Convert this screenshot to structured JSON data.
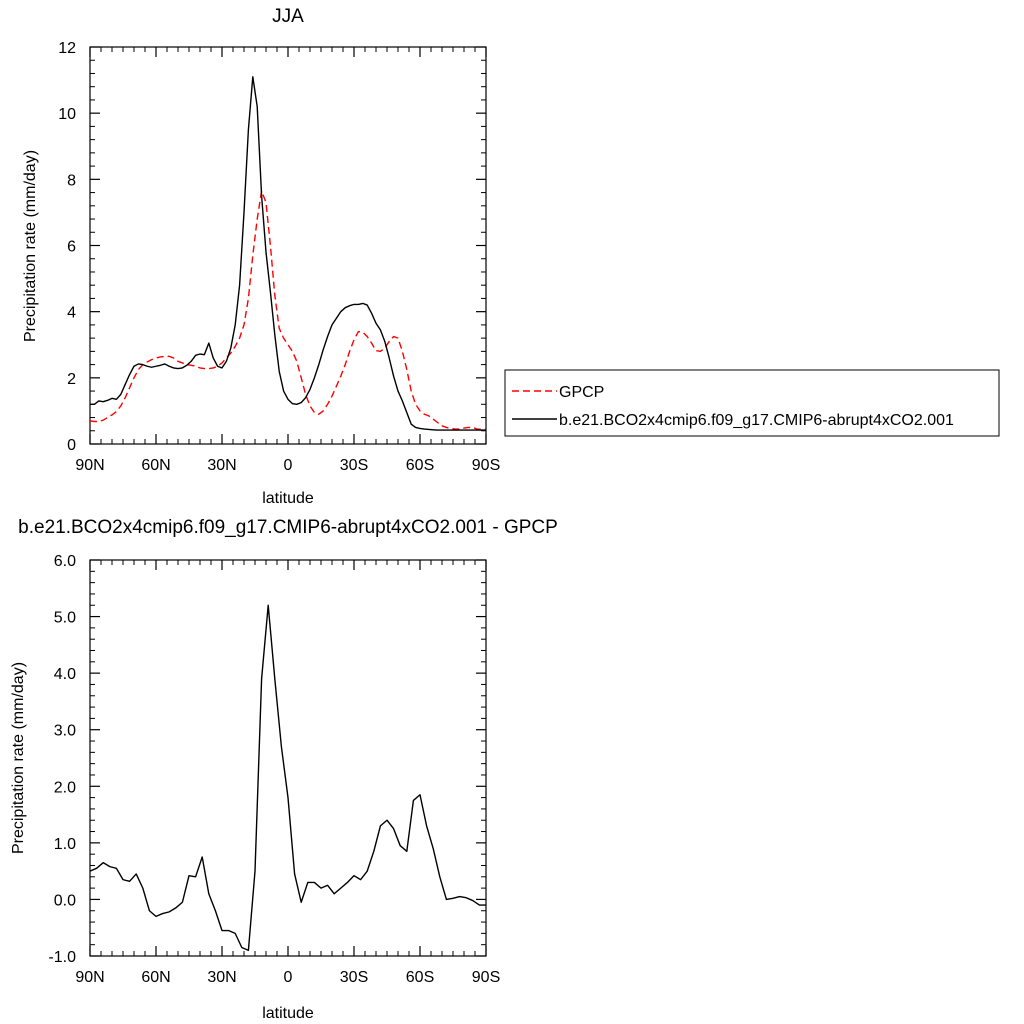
{
  "chart_data": [
    {
      "type": "line",
      "title": "JJA",
      "xlabel": "latitude",
      "ylabel": "Precipitation rate (mm/day)",
      "xlim": [
        90,
        -90
      ],
      "ylim": [
        0,
        12
      ],
      "x_ticks": [
        90,
        60,
        30,
        0,
        -30,
        -60,
        -90
      ],
      "x_tick_labels": [
        "90N",
        "60N",
        "30N",
        "0",
        "30S",
        "60S",
        "90S"
      ],
      "y_ticks": [
        0,
        2,
        4,
        6,
        8,
        10,
        12
      ],
      "y_tick_labels": [
        "0",
        "2",
        "4",
        "6",
        "8",
        "10",
        "12"
      ],
      "grid": false,
      "legend_position": "right",
      "series": [
        {
          "name": "GPCP",
          "color": "#ff0000",
          "dash": "dashed",
          "x": [
            90,
            88,
            86,
            84,
            82,
            80,
            78,
            76,
            74,
            72,
            70,
            68,
            66,
            64,
            62,
            60,
            58,
            56,
            54,
            52,
            50,
            48,
            46,
            44,
            42,
            40,
            38,
            36,
            34,
            32,
            30,
            28,
            26,
            24,
            22,
            20,
            18,
            16,
            14,
            12,
            10,
            8,
            6,
            4,
            2,
            0,
            -2,
            -4,
            -6,
            -8,
            -10,
            -12,
            -14,
            -16,
            -18,
            -20,
            -22,
            -24,
            -26,
            -28,
            -30,
            -32,
            -34,
            -36,
            -38,
            -40,
            -42,
            -44,
            -46,
            -48,
            -50,
            -52,
            -54,
            -56,
            -58,
            -60,
            -62,
            -64,
            -66,
            -68,
            -70,
            -72,
            -74,
            -76,
            -78,
            -80,
            -82,
            -84,
            -86,
            -88,
            -90
          ],
          "y": [
            0.7,
            0.68,
            0.68,
            0.72,
            0.8,
            0.88,
            0.98,
            1.15,
            1.4,
            1.7,
            2.0,
            2.25,
            2.4,
            2.48,
            2.55,
            2.6,
            2.63,
            2.65,
            2.65,
            2.6,
            2.5,
            2.45,
            2.4,
            2.38,
            2.35,
            2.3,
            2.28,
            2.28,
            2.3,
            2.35,
            2.45,
            2.6,
            2.75,
            2.95,
            3.2,
            3.6,
            4.4,
            5.7,
            6.8,
            7.65,
            7.3,
            6.0,
            4.5,
            3.5,
            3.2,
            3.0,
            2.8,
            2.5,
            2.0,
            1.5,
            1.15,
            0.95,
            0.9,
            1.0,
            1.2,
            1.45,
            1.75,
            2.05,
            2.4,
            2.8,
            3.15,
            3.4,
            3.38,
            3.25,
            3.05,
            2.82,
            2.8,
            2.9,
            3.1,
            3.25,
            3.2,
            2.8,
            2.25,
            1.6,
            1.2,
            1.0,
            0.9,
            0.85,
            0.75,
            0.65,
            0.55,
            0.5,
            0.47,
            0.45,
            0.45,
            0.48,
            0.5,
            0.5,
            0.45,
            0.44,
            0.45
          ]
        },
        {
          "name": "b.e21.BCO2x4cmip6.f09_g17.CMIP6-abrupt4xCO2.001",
          "color": "#000000",
          "dash": "solid",
          "x": [
            90,
            88,
            86,
            84,
            82,
            80,
            78,
            76,
            74,
            72,
            70,
            68,
            66,
            64,
            62,
            60,
            58,
            56,
            54,
            52,
            50,
            48,
            46,
            44,
            42,
            40,
            38,
            36,
            34,
            32,
            30,
            28,
            26,
            24,
            22,
            20,
            18,
            16,
            14,
            12,
            10,
            8,
            6,
            4,
            2,
            0,
            -2,
            -4,
            -6,
            -8,
            -10,
            -12,
            -14,
            -16,
            -18,
            -20,
            -22,
            -24,
            -26,
            -28,
            -30,
            -32,
            -34,
            -36,
            -38,
            -40,
            -42,
            -44,
            -46,
            -48,
            -50,
            -52,
            -54,
            -56,
            -58,
            -60,
            -62,
            -64,
            -66,
            -68,
            -70,
            -72,
            -74,
            -76,
            -78,
            -80,
            -82,
            -84,
            -86,
            -88,
            -90
          ],
          "y": [
            1.2,
            1.2,
            1.3,
            1.28,
            1.32,
            1.38,
            1.35,
            1.5,
            1.8,
            2.1,
            2.35,
            2.42,
            2.4,
            2.35,
            2.32,
            2.35,
            2.38,
            2.42,
            2.35,
            2.3,
            2.28,
            2.3,
            2.38,
            2.5,
            2.68,
            2.72,
            2.7,
            3.05,
            2.6,
            2.35,
            2.3,
            2.5,
            2.9,
            3.6,
            4.8,
            7.0,
            9.5,
            11.1,
            10.2,
            7.5,
            5.8,
            4.6,
            3.3,
            2.2,
            1.6,
            1.35,
            1.22,
            1.2,
            1.25,
            1.4,
            1.65,
            2.0,
            2.4,
            2.85,
            3.25,
            3.6,
            3.8,
            4.0,
            4.12,
            4.18,
            4.22,
            4.22,
            4.25,
            4.2,
            3.95,
            3.65,
            3.45,
            3.1,
            2.6,
            2.05,
            1.6,
            1.3,
            0.95,
            0.6,
            0.5,
            0.47,
            0.45,
            0.44,
            0.43,
            0.42,
            0.42,
            0.42,
            0.42,
            0.42,
            0.42,
            0.42,
            0.42,
            0.42,
            0.42,
            0.42,
            0.42
          ]
        }
      ]
    },
    {
      "type": "line",
      "title": "b.e21.BCO2x4cmip6.f09_g17.CMIP6-abrupt4xCO2.001 - GPCP",
      "xlabel": "latitude",
      "ylabel": "Precipitation rate (mm/day)",
      "xlim": [
        90,
        -90
      ],
      "ylim": [
        -1.0,
        6.0
      ],
      "x_ticks": [
        90,
        60,
        30,
        0,
        -30,
        -60,
        -90
      ],
      "x_tick_labels": [
        "90N",
        "60N",
        "30N",
        "0",
        "30S",
        "60S",
        "90S"
      ],
      "y_ticks": [
        -1.0,
        0.0,
        1.0,
        2.0,
        3.0,
        4.0,
        5.0,
        6.0
      ],
      "y_tick_labels": [
        "-1.0",
        "0.0",
        "1.0",
        "2.0",
        "3.0",
        "4.0",
        "5.0",
        "6.0"
      ],
      "grid": false,
      "series": [
        {
          "color": "#000000",
          "dash": "solid",
          "x": [
            90,
            87,
            84,
            81,
            78,
            75,
            72,
            69,
            66,
            63,
            60,
            57,
            54,
            51,
            48,
            45,
            42,
            39,
            36,
            33,
            30,
            27,
            24,
            21,
            18,
            15,
            12,
            9,
            6,
            3,
            0,
            -3,
            -6,
            -9,
            -12,
            -15,
            -18,
            -21,
            -24,
            -27,
            -30,
            -33,
            -36,
            -39,
            -42,
            -45,
            -48,
            -51,
            -54,
            -57,
            -60,
            -63,
            -66,
            -69,
            -72,
            -75,
            -78,
            -81,
            -84,
            -87,
            -90
          ],
          "y": [
            0.5,
            0.55,
            0.65,
            0.58,
            0.55,
            0.35,
            0.32,
            0.45,
            0.2,
            -0.2,
            -0.3,
            -0.25,
            -0.22,
            -0.15,
            -0.05,
            0.42,
            0.4,
            0.75,
            0.1,
            -0.2,
            -0.55,
            -0.55,
            -0.6,
            -0.85,
            -0.9,
            0.5,
            3.9,
            5.2,
            3.9,
            2.7,
            1.8,
            0.45,
            -0.05,
            0.3,
            0.3,
            0.2,
            0.25,
            0.1,
            0.2,
            0.3,
            0.42,
            0.35,
            0.5,
            0.85,
            1.3,
            1.4,
            1.25,
            0.95,
            0.85,
            1.75,
            1.85,
            1.3,
            0.9,
            0.4,
            0.0,
            0.02,
            0.05,
            0.03,
            -0.02,
            -0.1,
            -0.1
          ]
        }
      ]
    }
  ]
}
